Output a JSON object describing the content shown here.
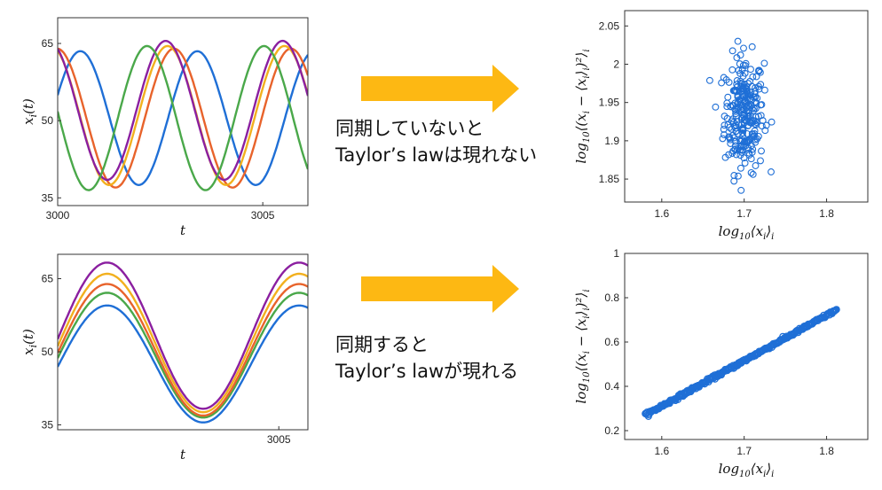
{
  "arrow_color": "#fdb813",
  "captions": {
    "top": [
      "同期していないと",
      "Taylor’s lawは現れない"
    ],
    "bottom": [
      "同期すると",
      "Taylor’s lawが現れる"
    ]
  },
  "chart_data": [
    {
      "id": "ts-unsync",
      "type": "line",
      "xlabel": "t",
      "ylabel": "x_i(t)",
      "xlim": [
        3000,
        3006.1
      ],
      "ylim": [
        33.5,
        70
      ],
      "xticks": [
        3000,
        3005
      ],
      "yticks": [
        35,
        50,
        65
      ],
      "series": [
        {
          "color": "#1f6fd6",
          "mean": 50.5,
          "amp": 13.0,
          "phase": 0.35
        },
        {
          "color": "#e8632b",
          "mean": 50.5,
          "amp": 13.5,
          "phase": 1.6
        },
        {
          "color": "#f2b01e",
          "mean": 51.0,
          "amp": 13.5,
          "phase": 1.95
        },
        {
          "color": "#8b1fa0",
          "mean": 52.0,
          "amp": 13.5,
          "phase": 2.05
        },
        {
          "color": "#4aa84a",
          "mean": 50.5,
          "amp": 14.0,
          "phase": 3.05
        }
      ],
      "period": 2.85
    },
    {
      "id": "ts-sync",
      "type": "line",
      "xlabel": "t",
      "ylabel": "x_i(t)",
      "xlim": [
        3001.2,
        3005.5
      ],
      "ylim": [
        34,
        70
      ],
      "xticks": [
        3005
      ],
      "yticks": [
        35,
        50,
        65
      ],
      "series": [
        {
          "color": "#1f6fd6",
          "mean": 47.5,
          "amp": 12.0
        },
        {
          "color": "#4aa84a",
          "mean": 49.3,
          "amp": 12.8
        },
        {
          "color": "#e8632b",
          "mean": 50.4,
          "amp": 13.5
        },
        {
          "color": "#f2b01e",
          "mean": 51.8,
          "amp": 14.2
        },
        {
          "color": "#8b1fa0",
          "mean": 53.3,
          "amp": 15.0
        }
      ],
      "period": 3.3,
      "peak_at": 3002.05
    },
    {
      "id": "scatter-unsync",
      "type": "scatter",
      "xlabel": "log10⟨x_i⟩_i",
      "ylabel": "log10⟨(x_i − ⟨x_i⟩_i)²⟩_i",
      "xlim": [
        1.555,
        1.85
      ],
      "ylim": [
        1.82,
        2.07
      ],
      "xticks": [
        1.6,
        1.7,
        1.8
      ],
      "yticks": [
        1.85,
        1.9,
        1.95,
        2,
        2.05
      ],
      "ytick_labels": [
        "1.85",
        "1.9",
        "1.95",
        "2",
        "2.05"
      ],
      "color": "#1f6fd6",
      "cluster": {
        "x_center": 1.7,
        "x_spread": 0.012,
        "y_center": 1.935,
        "y_spread": 0.038,
        "n": 260
      }
    },
    {
      "id": "scatter-sync",
      "type": "scatter",
      "xlabel": "log10⟨x_i⟩_i",
      "ylabel": "log10⟨(x_i − ⟨x_i⟩_i)²⟩_i",
      "xlim": [
        1.555,
        1.85
      ],
      "ylim": [
        0.16,
        1.0
      ],
      "xticks": [
        1.6,
        1.7,
        1.8
      ],
      "yticks": [
        0.2,
        0.4,
        0.6,
        0.8,
        1
      ],
      "ytick_labels": [
        "0.2",
        "0.4",
        "0.6",
        "0.8",
        "1"
      ],
      "color": "#1f6fd6",
      "line": {
        "x_start": 1.58,
        "x_end": 1.812,
        "y_start": 0.27,
        "y_end": 0.745,
        "n": 300
      }
    }
  ]
}
